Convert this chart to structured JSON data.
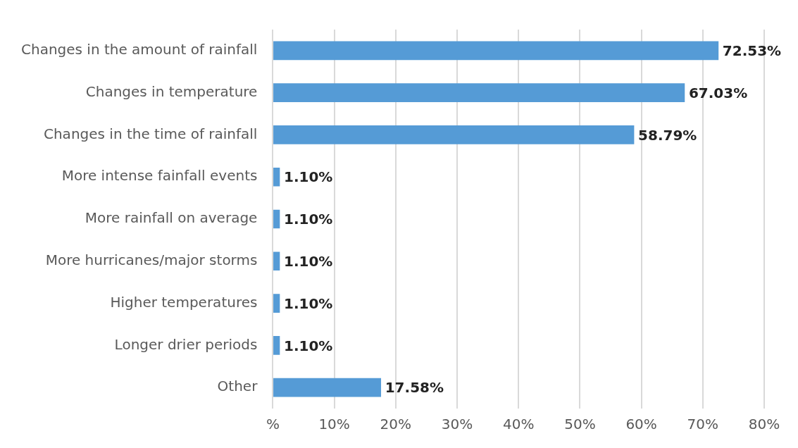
{
  "chart_data": {
    "type": "bar",
    "orientation": "horizontal",
    "categories": [
      "Changes in the amount of rainfall",
      "Changes in temperature",
      "Changes in the time of rainfall",
      "More intense fainfall events",
      "More rainfall on average",
      "More hurricanes/major storms",
      "Higher temperatures",
      "Longer drier periods",
      "Other"
    ],
    "values": [
      72.53,
      67.03,
      58.79,
      1.1,
      1.1,
      1.1,
      1.1,
      1.1,
      17.58
    ],
    "value_labels": [
      "72.53%",
      "67.03%",
      "58.79%",
      "1.10%",
      "1.10%",
      "1.10%",
      "1.10%",
      "1.10%",
      "17.58%"
    ],
    "color": "#559bd6",
    "xlim": [
      0,
      80
    ],
    "xticks": [
      {
        "value": 0,
        "label": "%"
      },
      {
        "value": 10,
        "label": "10%"
      },
      {
        "value": 20,
        "label": "20%"
      },
      {
        "value": 30,
        "label": "30%"
      },
      {
        "value": 40,
        "label": "40%"
      },
      {
        "value": 50,
        "label": "50%"
      },
      {
        "value": 60,
        "label": "60%"
      },
      {
        "value": 70,
        "label": "70%"
      },
      {
        "value": 80,
        "label": "80%"
      }
    ],
    "grid": "x",
    "legend": false
  }
}
